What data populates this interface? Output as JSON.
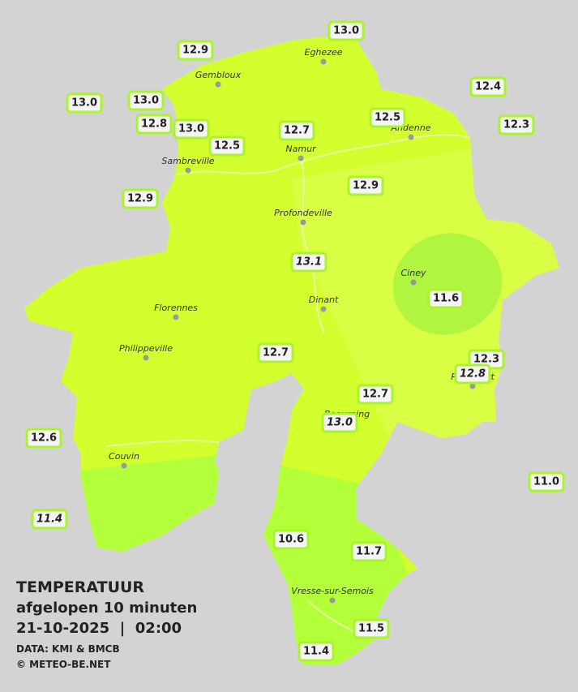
{
  "legend": {
    "title": "TEMPERATUUR",
    "subtitle": "afgelopen 10 minuten",
    "timestamp": "21-10-2025  |  02:00",
    "source": "DATA: KMI & BMCB",
    "credit": "© METEO-BE.NET"
  },
  "places": [
    "Eghezee",
    "Gembloux",
    "Andenne",
    "Namur",
    "Sambreville",
    "Profondeville",
    "Ciney",
    "Dinant",
    "Florennes",
    "Philippeville",
    "Rochefort",
    "Beauraing",
    "Couvin",
    "Vresse-sur-Semois"
  ],
  "readings": [
    "13.0",
    "12.9",
    "12.4",
    "13.0",
    "13.0",
    "12.5",
    "12.3",
    "12.8",
    "13.0",
    "12.7",
    "12.5",
    "12.9",
    "12.9",
    "13.1",
    "11.6",
    "12.7",
    "12.3",
    "12.8",
    "12.7",
    "13.0",
    "12.6",
    "11.0",
    "11.4",
    "10.6",
    "11.7",
    "11.5",
    "11.4"
  ]
}
